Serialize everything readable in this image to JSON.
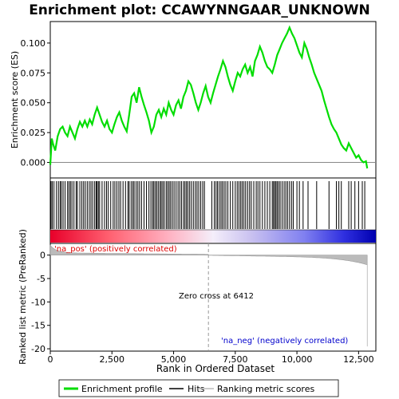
{
  "chart_data": {
    "type": "line",
    "title": "Enrichment plot: CCAWYNNGAAR_UNKNOWN",
    "xlabel": "Rank in Ordered Dataset",
    "ylabel_top": "Enrichment score (ES)",
    "ylabel_bottom": "Ranked list metric (PreRanked)",
    "x_ticks": [
      0,
      2500,
      5000,
      7500,
      10000,
      12500
    ],
    "x_tick_labels": [
      "0",
      "2,500",
      "5,000",
      "7,500",
      "10,000",
      "12,500"
    ],
    "xlim": [
      0,
      13200
    ],
    "es_ylim": [
      -0.013,
      0.118
    ],
    "es_y_ticks": [
      0.0,
      0.025,
      0.05,
      0.075,
      0.1
    ],
    "es_y_tick_labels": [
      "0.000",
      "0.025",
      "0.050",
      "0.075",
      "0.100"
    ],
    "metric_ylim": [
      -20.5,
      2.5
    ],
    "metric_y_ticks": [
      0,
      -5,
      -10,
      -15,
      -20
    ],
    "metric_y_tick_labels": [
      "0",
      "-5",
      "-10",
      "-15",
      "-20"
    ],
    "es_curve": {
      "x": [
        0,
        60,
        120,
        200,
        300,
        400,
        500,
        600,
        700,
        800,
        900,
        1000,
        1100,
        1200,
        1300,
        1400,
        1500,
        1600,
        1700,
        1800,
        1900,
        2000,
        2100,
        2200,
        2300,
        2400,
        2500,
        2600,
        2700,
        2800,
        2900,
        3000,
        3100,
        3200,
        3300,
        3400,
        3500,
        3600,
        3700,
        3800,
        3900,
        4000,
        4100,
        4200,
        4300,
        4400,
        4500,
        4600,
        4700,
        4800,
        4900,
        5000,
        5100,
        5200,
        5300,
        5400,
        5500,
        5600,
        5700,
        5800,
        5900,
        6000,
        6100,
        6200,
        6300,
        6400,
        6500,
        6600,
        6700,
        6800,
        6900,
        7000,
        7100,
        7200,
        7300,
        7400,
        7500,
        7600,
        7700,
        7800,
        7900,
        8000,
        8100,
        8200,
        8300,
        8400,
        8500,
        8600,
        8700,
        8800,
        8900,
        9000,
        9100,
        9200,
        9300,
        9400,
        9500,
        9600,
        9700,
        9800,
        9900,
        10000,
        10100,
        10200,
        10300,
        10400,
        10500,
        10600,
        10700,
        10800,
        10900,
        11000,
        11100,
        11200,
        11300,
        11400,
        11500,
        11600,
        11700,
        11800,
        11900,
        12000,
        12100,
        12200,
        12300,
        12400,
        12500,
        12600,
        12700,
        12800,
        12850
      ],
      "y": [
        -0.002,
        0.02,
        0.015,
        0.01,
        0.022,
        0.028,
        0.03,
        0.025,
        0.022,
        0.03,
        0.025,
        0.02,
        0.028,
        0.034,
        0.03,
        0.035,
        0.03,
        0.036,
        0.032,
        0.04,
        0.046,
        0.04,
        0.034,
        0.03,
        0.035,
        0.028,
        0.025,
        0.032,
        0.038,
        0.042,
        0.035,
        0.03,
        0.026,
        0.04,
        0.055,
        0.058,
        0.05,
        0.063,
        0.055,
        0.048,
        0.042,
        0.035,
        0.025,
        0.03,
        0.04,
        0.044,
        0.038,
        0.045,
        0.04,
        0.05,
        0.044,
        0.04,
        0.048,
        0.052,
        0.045,
        0.055,
        0.06,
        0.068,
        0.065,
        0.058,
        0.05,
        0.044,
        0.05,
        0.058,
        0.064,
        0.055,
        0.05,
        0.058,
        0.065,
        0.072,
        0.078,
        0.085,
        0.08,
        0.072,
        0.065,
        0.06,
        0.068,
        0.075,
        0.072,
        0.078,
        0.082,
        0.075,
        0.08,
        0.072,
        0.085,
        0.09,
        0.097,
        0.092,
        0.085,
        0.08,
        0.078,
        0.075,
        0.082,
        0.09,
        0.095,
        0.1,
        0.104,
        0.108,
        0.113,
        0.108,
        0.104,
        0.098,
        0.092,
        0.088,
        0.1,
        0.095,
        0.088,
        0.082,
        0.075,
        0.07,
        0.065,
        0.06,
        0.052,
        0.045,
        0.038,
        0.032,
        0.028,
        0.025,
        0.02,
        0.015,
        0.012,
        0.01,
        0.016,
        0.012,
        0.008,
        0.004,
        0.006,
        0.002,
        0.0,
        0.001,
        -0.005
      ]
    },
    "hits": [
      30,
      80,
      150,
      250,
      330,
      400,
      450,
      520,
      600,
      700,
      760,
      820,
      880,
      960,
      1050,
      1100,
      1200,
      1280,
      1350,
      1420,
      1500,
      1580,
      1650,
      1720,
      1800,
      1860,
      1900,
      1950,
      2000,
      2100,
      2200,
      2280,
      2350,
      2450,
      2550,
      2620,
      2700,
      2780,
      2850,
      2950,
      3050,
      3150,
      3200,
      3280,
      3350,
      3400,
      3480,
      3550,
      3620,
      3700,
      3800,
      3900,
      4000,
      4080,
      4150,
      4200,
      4260,
      4320,
      4380,
      4450,
      4500,
      4560,
      4620,
      4700,
      4760,
      4820,
      4880,
      4950,
      5020,
      5100,
      5180,
      5250,
      5320,
      5400,
      5460,
      5520,
      5580,
      5650,
      5720,
      5800,
      5880,
      5950,
      6020,
      6100,
      6180,
      6250,
      6550,
      6650,
      6720,
      6780,
      6850,
      6920,
      6980,
      7050,
      7120,
      7200,
      7300,
      7400,
      7500,
      7580,
      7650,
      7720,
      7780,
      7850,
      7920,
      8000,
      8080,
      8150,
      8250,
      8350,
      8420,
      8500,
      8600,
      8700,
      8800,
      8900,
      9000,
      9050,
      9100,
      9150,
      9200,
      9260,
      9320,
      9400,
      9480,
      9550,
      9620,
      9700,
      9780,
      9850,
      10000,
      10100,
      10250,
      10450,
      10800,
      11300,
      11600,
      11700,
      11800,
      12100,
      12200,
      12350,
      12500,
      12650,
      12750
    ],
    "zero_cross": 6412,
    "zero_cross_label": "Zero cross at 6412",
    "pos_label": "'na_pos' (positively correlated)",
    "neg_label": "'na_neg' (negatively correlated)",
    "legend": [
      {
        "label": "Enrichment profile",
        "color": "#00dd00"
      },
      {
        "label": "Hits",
        "color": "#000000"
      },
      {
        "label": "Ranking metric scores",
        "color": "#bbbbbb"
      }
    ],
    "colors": {
      "es_line": "#00dd00",
      "pos_text": "#dd0000",
      "neg_text": "#0000cc",
      "metric_fill": "#bbbbbb",
      "zero_line": "#999999"
    }
  }
}
